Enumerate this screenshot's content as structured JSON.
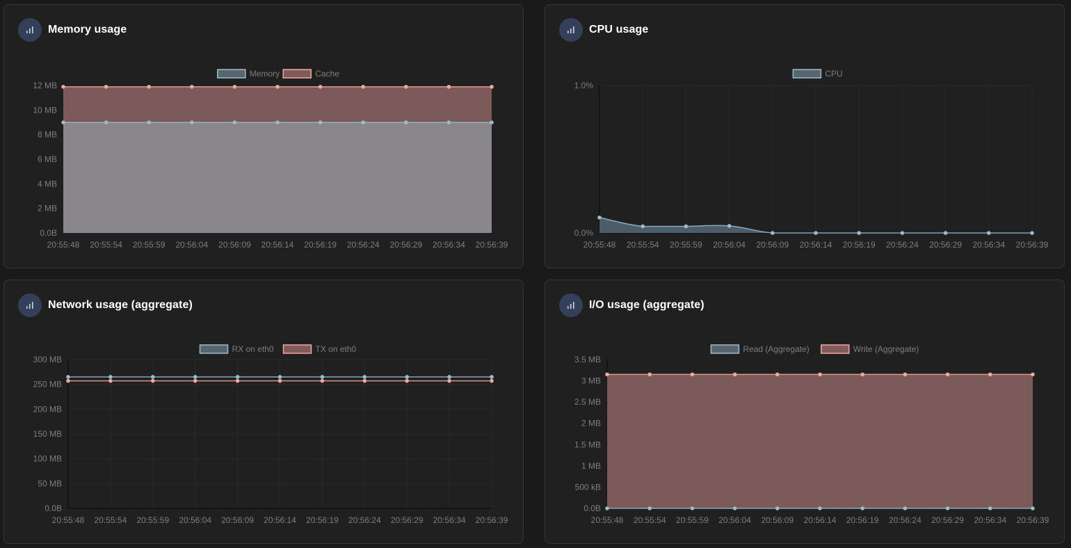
{
  "panels": [
    {
      "title": "Memory usage",
      "icon": "bar-chart-icon",
      "chart_data": {
        "type": "area",
        "x": [
          "20:55:48",
          "20:55:54",
          "20:55:59",
          "20:56:04",
          "20:56:09",
          "20:56:14",
          "20:56:19",
          "20:56:24",
          "20:56:29",
          "20:56:34",
          "20:56:39"
        ],
        "yticks": [
          "0.0B",
          "2 MB",
          "4 MB",
          "6 MB",
          "8 MB",
          "10 MB",
          "12 MB"
        ],
        "ylim": [
          0,
          12
        ],
        "unit": "MB",
        "stacked": true,
        "grid": false,
        "legend_position": "top",
        "series": [
          {
            "name": "Memory",
            "color": "#9bbbd0",
            "values": [
              9.0,
              9.0,
              9.0,
              9.0,
              9.0,
              9.0,
              9.0,
              9.0,
              9.0,
              9.0,
              9.0
            ]
          },
          {
            "name": "Cache",
            "color": "#f4a7a0",
            "values": [
              2.9,
              2.9,
              2.9,
              2.9,
              2.9,
              2.9,
              2.9,
              2.9,
              2.9,
              2.9,
              2.9
            ]
          }
        ]
      }
    },
    {
      "title": "CPU usage",
      "icon": "bar-chart-icon",
      "chart_data": {
        "type": "area",
        "x": [
          "20:55:48",
          "20:55:54",
          "20:55:59",
          "20:56:04",
          "20:56:09",
          "20:56:14",
          "20:56:19",
          "20:56:24",
          "20:56:29",
          "20:56:34",
          "20:56:39"
        ],
        "yticks": [
          "0.0%",
          "1.0%"
        ],
        "ylim": [
          0,
          1.0
        ],
        "unit": "%",
        "stacked": false,
        "grid": true,
        "legend_position": "top",
        "series": [
          {
            "name": "CPU",
            "color": "#9bbbd0",
            "values": [
              0.105,
              0.045,
              0.045,
              0.048,
              0.0,
              0.0,
              0.0,
              0.0,
              0.0,
              0.0,
              0.0
            ]
          }
        ]
      }
    },
    {
      "title": "Network usage (aggregate)",
      "icon": "bar-chart-icon",
      "chart_data": {
        "type": "line",
        "x": [
          "20:55:48",
          "20:55:54",
          "20:55:59",
          "20:56:04",
          "20:56:09",
          "20:56:14",
          "20:56:19",
          "20:56:24",
          "20:56:29",
          "20:56:34",
          "20:56:39"
        ],
        "yticks": [
          "0.0B",
          "50 MB",
          "100 MB",
          "150 MB",
          "200 MB",
          "250 MB",
          "300 MB"
        ],
        "ylim": [
          0,
          300
        ],
        "unit": "MB",
        "stacked": false,
        "grid": true,
        "legend_position": "top",
        "series": [
          {
            "name": "RX on eth0",
            "color": "#9bbbd0",
            "values": [
              265,
              265,
              265,
              265,
              265,
              265,
              265,
              265,
              265,
              265,
              265
            ]
          },
          {
            "name": "TX on eth0",
            "color": "#f4a7a0",
            "values": [
              257,
              257,
              257,
              257,
              257,
              257,
              257,
              257,
              257,
              257,
              257
            ]
          }
        ]
      }
    },
    {
      "title": "I/O usage (aggregate)",
      "icon": "bar-chart-icon",
      "chart_data": {
        "type": "area",
        "x": [
          "20:55:48",
          "20:55:54",
          "20:55:59",
          "20:56:04",
          "20:56:09",
          "20:56:14",
          "20:56:19",
          "20:56:24",
          "20:56:29",
          "20:56:34",
          "20:56:39"
        ],
        "yticks": [
          "0.0B",
          "500 kB",
          "1 MB",
          "1.5 MB",
          "2 MB",
          "2.5 MB",
          "3 MB",
          "3.5 MB"
        ],
        "ylim": [
          0,
          3.5
        ],
        "unit": "MB",
        "stacked": true,
        "grid": false,
        "legend_position": "top",
        "series": [
          {
            "name": "Read (Aggregate)",
            "color": "#9bbbd0",
            "values": [
              0,
              0,
              0,
              0,
              0,
              0,
              0,
              0,
              0,
              0,
              0
            ]
          },
          {
            "name": "Write (Aggregate)",
            "color": "#f4a7a0",
            "values": [
              3.15,
              3.15,
              3.15,
              3.15,
              3.15,
              3.15,
              3.15,
              3.15,
              3.15,
              3.15,
              3.15
            ]
          }
        ]
      }
    }
  ]
}
